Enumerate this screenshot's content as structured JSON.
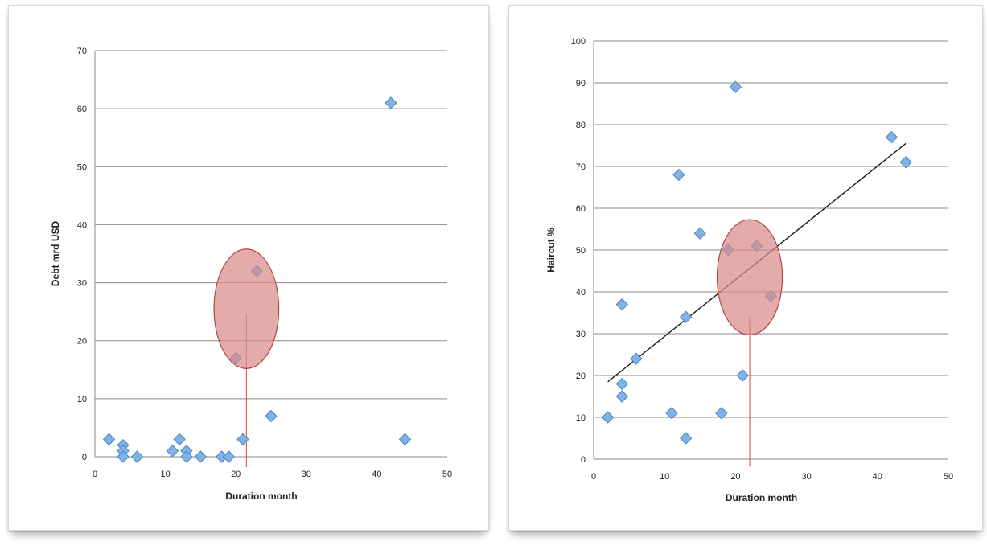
{
  "chart_data": [
    {
      "type": "scatter",
      "xlabel": "Duration month",
      "ylabel": "Debt mrd USD",
      "xlim": [
        0,
        50
      ],
      "ylim": [
        0,
        70
      ],
      "xticks": [
        0,
        10,
        20,
        30,
        40,
        50
      ],
      "yticks": [
        0,
        10,
        20,
        30,
        40,
        50,
        60,
        70
      ],
      "grid": "horizontal",
      "series": [
        {
          "x": [
            2,
            4,
            4,
            4,
            6,
            11,
            12,
            13,
            13,
            15,
            18,
            19,
            20,
            21,
            23,
            25,
            42,
            44
          ],
          "y": [
            3,
            2,
            1,
            0,
            0,
            1,
            3,
            1,
            0,
            0,
            0,
            0,
            17,
            3,
            32,
            7,
            61,
            3
          ],
          "color": "#7fb2e5"
        }
      ],
      "annotations": [
        {
          "type": "ellipse",
          "cx": 21.5,
          "cy": 25.5,
          "rx": 4.6,
          "ry": 10.3,
          "color": "#d98a8a"
        },
        {
          "type": "vline",
          "x": 21.5,
          "y0": 24.5,
          "y1": -1.8,
          "color": "#e34040"
        }
      ]
    },
    {
      "type": "scatter",
      "xlabel": "Duration month",
      "ylabel": "Haircut %",
      "xlim": [
        0,
        50
      ],
      "ylim": [
        0,
        100
      ],
      "xticks": [
        0,
        10,
        20,
        30,
        40,
        50
      ],
      "yticks": [
        0,
        10,
        20,
        30,
        40,
        50,
        60,
        70,
        80,
        90,
        100
      ],
      "grid": "horizontal",
      "series": [
        {
          "x": [
            2,
            4,
            4,
            4,
            6,
            11,
            12,
            13,
            13,
            15,
            18,
            19,
            20,
            21,
            23,
            25,
            42,
            44
          ],
          "y": [
            10,
            37,
            18,
            15,
            24,
            11,
            68,
            34,
            5,
            54,
            11,
            50,
            89,
            20,
            51,
            39,
            77,
            71
          ],
          "color": "#7fb2e5"
        }
      ],
      "trendline": {
        "x": [
          2,
          44
        ],
        "y": [
          18.5,
          75.5
        ],
        "color": "#1b1b1b"
      },
      "annotations": [
        {
          "type": "ellipse",
          "cx": 22,
          "cy": 43.5,
          "rx": 4.6,
          "ry": 13.8,
          "color": "#d98a8a"
        },
        {
          "type": "vline",
          "x": 22,
          "y0": 34,
          "y1": -1.8,
          "color": "#e34040"
        }
      ]
    }
  ]
}
